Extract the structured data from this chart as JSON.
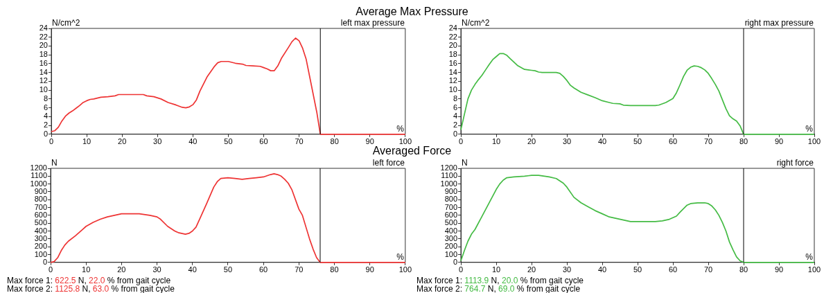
{
  "chart_data": [
    {
      "type": "line",
      "title": "Average Max Pressure",
      "subtitle": "left max pressure",
      "ylabel": "N/cm^2",
      "xlabel": "%",
      "grid": false,
      "legend": false,
      "marker": "none",
      "line_style": "solid",
      "x": [
        0,
        1,
        2,
        3,
        4,
        5,
        6,
        7,
        8,
        9,
        10,
        11,
        12,
        14,
        16,
        18,
        19,
        22,
        26,
        27,
        29,
        31,
        33,
        35,
        37,
        38,
        39,
        40,
        41,
        42,
        44,
        46,
        47,
        48,
        50,
        52,
        54,
        55,
        57,
        59,
        60,
        61,
        62,
        63,
        64,
        65,
        67,
        68,
        69,
        70,
        71,
        72,
        73,
        75,
        76,
        80,
        90,
        100
      ],
      "series": [
        {
          "color": "#ee3333",
          "values": [
            0.6,
            0.8,
            1.6,
            3,
            4.1,
            4.8,
            5.3,
            5.9,
            6.5,
            7.2,
            7.6,
            7.9,
            8.0,
            8.4,
            8.5,
            8.7,
            9.0,
            9.0,
            9.0,
            8.7,
            8.5,
            8.0,
            7.2,
            6.7,
            6.1,
            6.0,
            6.2,
            6.7,
            7.8,
            9.8,
            13,
            15.3,
            16.2,
            16.5,
            16.5,
            16.1,
            15.9,
            15.6,
            15.5,
            15.4,
            15.1,
            14.8,
            14.4,
            14.4,
            15.5,
            17.2,
            19.7,
            21.0,
            21.8,
            21.2,
            19.5,
            17,
            13,
            5,
            0,
            0,
            0,
            0
          ]
        }
      ],
      "xlim": [
        0,
        100
      ],
      "xticks": [
        0,
        10,
        20,
        30,
        40,
        50,
        60,
        70,
        80,
        90,
        100
      ],
      "ylim": [
        0,
        24
      ],
      "yticks": [
        0,
        2,
        4,
        6,
        8,
        10,
        12,
        14,
        16,
        18,
        20,
        22,
        24
      ],
      "ref_lines": [
        {
          "axis": "x",
          "value": 76,
          "color": "#000000"
        }
      ]
    },
    {
      "type": "line",
      "subtitle": "right max pressure",
      "ylabel": "N/cm^2",
      "xlabel": "%",
      "grid": false,
      "legend": false,
      "marker": "none",
      "line_style": "solid",
      "x": [
        0,
        1,
        2,
        3,
        4,
        5,
        6,
        7,
        8,
        9,
        10,
        11,
        12,
        13,
        14,
        16,
        18,
        20,
        21,
        22,
        23,
        27,
        28,
        29,
        30,
        31,
        32,
        34,
        36,
        38,
        40,
        42,
        43,
        45,
        46,
        48,
        55,
        56,
        58,
        60,
        61,
        62,
        63,
        64,
        65,
        66,
        67,
        68,
        69,
        70,
        71,
        72,
        73,
        74,
        75,
        76,
        77,
        78,
        79,
        80,
        90,
        100
      ],
      "series": [
        {
          "color": "#44bb44",
          "values": [
            1,
            4.5,
            8,
            10,
            11.3,
            12.4,
            13.4,
            14.6,
            15.8,
            16.9,
            17.6,
            18.3,
            18.3,
            17.9,
            17.1,
            15.6,
            14.7,
            14.5,
            14.4,
            14.1,
            14.0,
            14.0,
            13.8,
            13.1,
            12.2,
            11.1,
            10.5,
            9.5,
            8.9,
            8.3,
            7.6,
            7.2,
            7.0,
            6.9,
            6.6,
            6.5,
            6.5,
            6.6,
            7.2,
            8.1,
            9.4,
            11.2,
            13.1,
            14.5,
            15.2,
            15.5,
            15.4,
            15.1,
            14.6,
            13.8,
            12.6,
            11.3,
            9.8,
            7.8,
            5.8,
            4.2,
            3.5,
            3.0,
            1.9,
            0,
            0,
            0
          ]
        }
      ],
      "xlim": [
        0,
        100
      ],
      "xticks": [
        0,
        10,
        20,
        30,
        40,
        50,
        60,
        70,
        80,
        90,
        100
      ],
      "ylim": [
        0,
        24
      ],
      "yticks": [
        0,
        2,
        4,
        6,
        8,
        10,
        12,
        14,
        16,
        18,
        20,
        22,
        24
      ],
      "ref_lines": [
        {
          "axis": "x",
          "value": 80,
          "color": "#000000"
        }
      ]
    },
    {
      "type": "line",
      "title": "Averaged Force",
      "subtitle": "left force",
      "ylabel": "N",
      "xlabel": "%",
      "grid": false,
      "legend": false,
      "marker": "none",
      "line_style": "solid",
      "x": [
        0,
        1,
        2,
        3,
        4,
        5,
        7,
        9,
        10,
        12,
        14,
        16,
        18,
        20,
        22,
        25,
        28,
        30,
        31,
        33,
        35,
        36,
        38,
        39,
        40,
        41,
        42,
        44,
        46,
        47,
        48,
        50,
        52,
        54,
        56,
        58,
        60,
        62,
        63,
        64,
        65,
        66,
        67,
        68,
        70,
        71,
        72,
        73,
        74,
        75,
        76,
        80,
        90,
        100
      ],
      "series": [
        {
          "color": "#ee3333",
          "values": [
            0,
            10,
            60,
            150,
            220,
            270,
            340,
            420,
            460,
            510,
            550,
            580,
            600,
            620,
            620,
            620,
            600,
            580,
            550,
            460,
            400,
            380,
            360,
            370,
            400,
            450,
            550,
            750,
            960,
            1030,
            1070,
            1080,
            1070,
            1060,
            1070,
            1080,
            1090,
            1120,
            1130,
            1120,
            1100,
            1060,
            1010,
            930,
            680,
            600,
            450,
            300,
            170,
            60,
            0,
            0,
            0,
            0
          ]
        }
      ],
      "xlim": [
        0,
        100
      ],
      "xticks": [
        0,
        10,
        20,
        30,
        40,
        50,
        60,
        70,
        80,
        90,
        100
      ],
      "ylim": [
        0,
        1200
      ],
      "yticks": [
        0,
        100,
        200,
        300,
        400,
        500,
        600,
        700,
        800,
        900,
        1000,
        1100,
        1200
      ],
      "ref_lines": [
        {
          "axis": "x",
          "value": 76,
          "color": "#000000"
        }
      ],
      "annotations": [
        "Max force 1: 622.5 N, 22.0 % from gait cycle",
        "Max force 2: 1125.8 N, 63.0 % from gait cycle"
      ]
    },
    {
      "type": "line",
      "subtitle": "right force",
      "ylabel": "N",
      "xlabel": "%",
      "grid": false,
      "legend": false,
      "marker": "none",
      "line_style": "solid",
      "x": [
        0,
        1,
        2,
        3,
        4,
        6,
        8,
        10,
        11,
        12,
        13,
        15,
        18,
        20,
        22,
        25,
        27,
        29,
        30,
        32,
        34,
        36,
        38,
        40,
        42,
        44,
        46,
        48,
        50,
        55,
        57,
        59,
        61,
        62,
        64,
        65,
        67,
        69,
        70,
        71,
        72,
        73,
        74,
        75,
        76,
        77,
        78,
        79,
        80,
        90,
        100
      ],
      "series": [
        {
          "color": "#44bb44",
          "values": [
            20,
            150,
            270,
            360,
            420,
            590,
            760,
            930,
            1000,
            1050,
            1080,
            1090,
            1100,
            1110,
            1110,
            1090,
            1070,
            1010,
            960,
            830,
            760,
            710,
            660,
            620,
            580,
            560,
            540,
            520,
            520,
            520,
            530,
            550,
            590,
            640,
            730,
            750,
            760,
            760,
            750,
            720,
            670,
            600,
            510,
            400,
            260,
            160,
            70,
            20,
            0,
            0,
            0
          ]
        }
      ],
      "xlim": [
        0,
        100
      ],
      "xticks": [
        0,
        10,
        20,
        30,
        40,
        50,
        60,
        70,
        80,
        90,
        100
      ],
      "ylim": [
        0,
        1200
      ],
      "yticks": [
        0,
        100,
        200,
        300,
        400,
        500,
        600,
        700,
        800,
        900,
        1000,
        1100,
        1200
      ],
      "ref_lines": [
        {
          "axis": "x",
          "value": 80,
          "color": "#000000"
        }
      ],
      "annotations": [
        "Max force 1: 1113.9 N, 20.0 % from gait cycle",
        "Max force 2: 764.7 N, 69.0 % from gait cycle"
      ]
    }
  ]
}
